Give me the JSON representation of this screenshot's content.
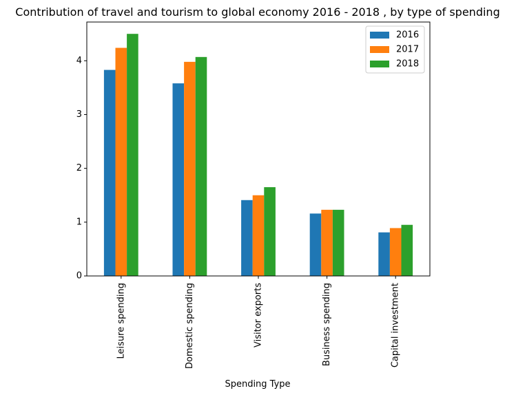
{
  "chart_data": {
    "type": "bar",
    "title": "Contribution of travel and tourism to global economy 2016 - 2018 , by type of spending",
    "xlabel": "Spending Type",
    "ylabel": "",
    "categories": [
      "Leisure spending",
      "Domestic spending",
      "Visitor exports",
      "Business spending",
      "Capital investment"
    ],
    "series": [
      {
        "name": "2016",
        "color": "#1f77b4",
        "values": [
          3.83,
          3.58,
          1.41,
          1.16,
          0.81
        ]
      },
      {
        "name": "2017",
        "color": "#ff7f0e",
        "values": [
          4.24,
          3.98,
          1.5,
          1.23,
          0.89
        ]
      },
      {
        "name": "2018",
        "color": "#2ca02c",
        "values": [
          4.5,
          4.07,
          1.65,
          1.23,
          0.95
        ]
      }
    ],
    "yticks": [
      0,
      1,
      2,
      3,
      4
    ],
    "ylim": [
      0,
      4.72
    ],
    "grid": false,
    "legend_position": "top-right"
  }
}
